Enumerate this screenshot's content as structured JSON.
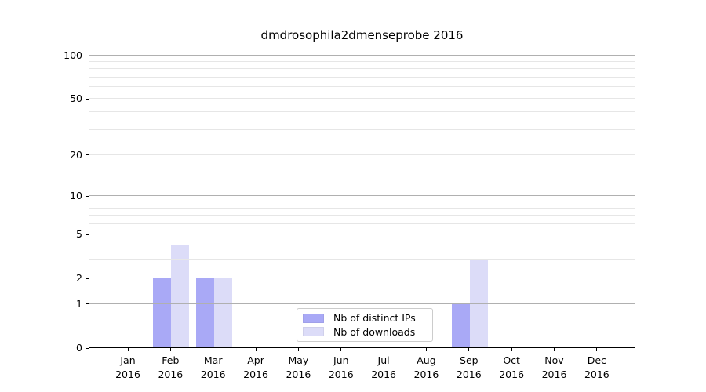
{
  "chart_data": {
    "type": "bar",
    "title": "dmdrosophila2dmenseprobe 2016",
    "categories": [
      "Jan 2016",
      "Feb 2016",
      "Mar 2016",
      "Apr 2016",
      "May 2016",
      "Jun 2016",
      "Jul 2016",
      "Aug 2016",
      "Sep 2016",
      "Oct 2016",
      "Nov 2016",
      "Dec 2016"
    ],
    "series": [
      {
        "name": "Nb of distinct IPs",
        "color": "#a9a9f6",
        "values": [
          0,
          2,
          2,
          0,
          0,
          0,
          0,
          0,
          1,
          0,
          0,
          0
        ]
      },
      {
        "name": "Nb of downloads",
        "color": "#dcdcf8",
        "values": [
          0,
          4,
          2,
          0,
          0,
          0,
          0,
          0,
          3,
          0,
          0,
          0
        ]
      }
    ],
    "xlabel": "",
    "ylabel": "",
    "yscale": "log1p",
    "yticks": [
      0,
      1,
      2,
      5,
      10,
      20,
      50,
      100
    ],
    "ylim": [
      0,
      112
    ],
    "grid": "on",
    "grid_major_color": "#b0b0b0",
    "grid_minor_color": "#e6e6e6",
    "axis_color": "#000000",
    "background": "#ffffff",
    "legend_position": "lower center"
  }
}
